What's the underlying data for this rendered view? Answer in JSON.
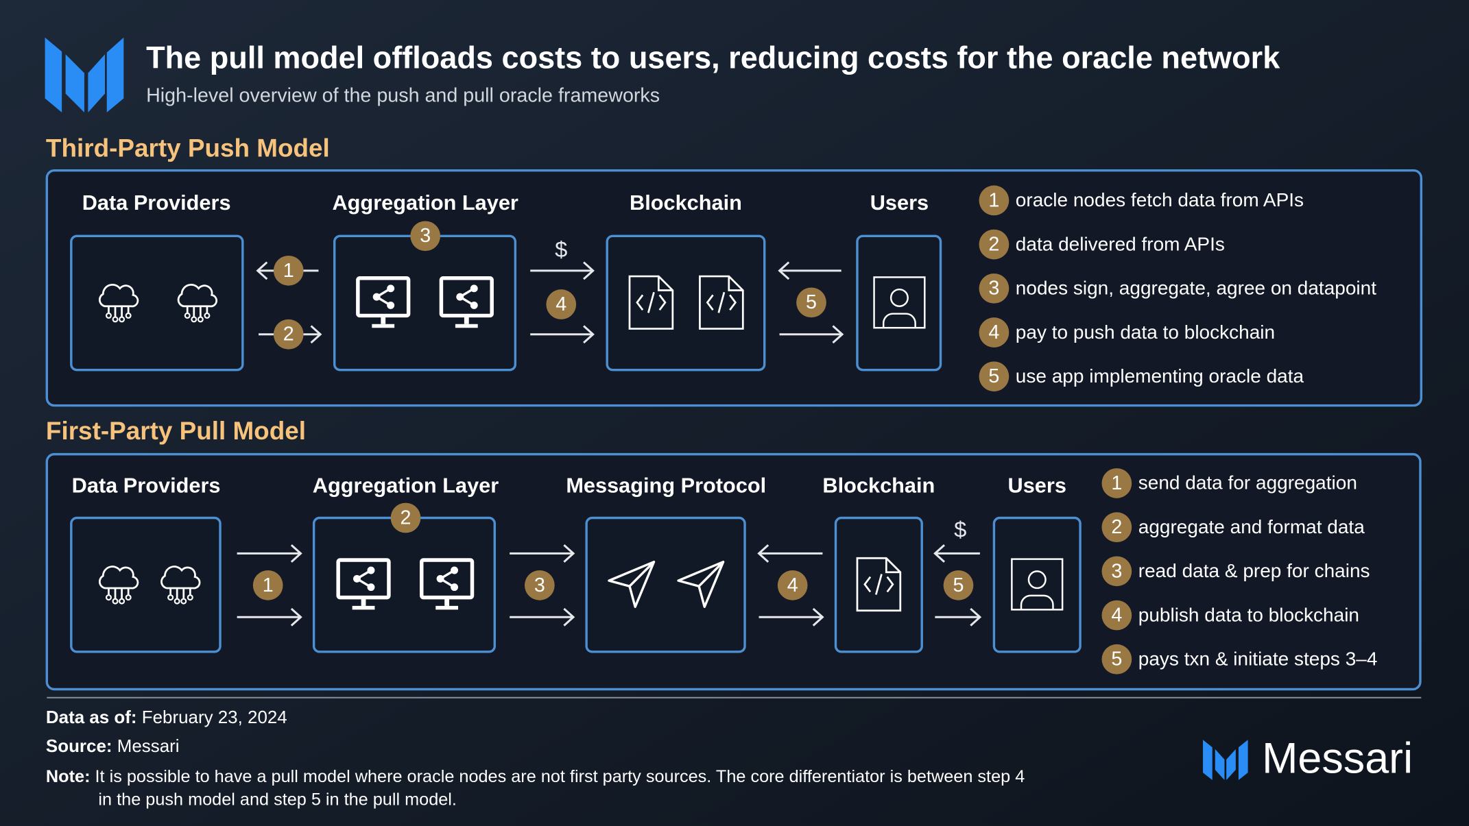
{
  "header": {
    "title": "The pull model offloads costs to users, reducing costs for the oracle network",
    "subtitle": "High-level overview of the push and pull oracle frameworks"
  },
  "push_model": {
    "title": "Third-Party Push Model",
    "columns": [
      "Data Providers",
      "Aggregation Layer",
      "Blockchain",
      "Users"
    ],
    "fee_symbol": "$",
    "steps": [
      {
        "number": "1",
        "text": "oracle nodes fetch data from APIs"
      },
      {
        "number": "2",
        "text": "data delivered from APIs"
      },
      {
        "number": "3",
        "text": "nodes sign, aggregate, agree on datapoint"
      },
      {
        "number": "4",
        "text": "pay to push data to blockchain"
      },
      {
        "number": "5",
        "text": "use app implementing oracle data"
      }
    ]
  },
  "pull_model": {
    "title": "First-Party Pull Model",
    "columns": [
      "Data Providers",
      "Aggregation Layer",
      "Messaging Protocol",
      "Blockchain",
      "Users"
    ],
    "fee_symbol": "$",
    "steps": [
      {
        "number": "1",
        "text": "send data for aggregation"
      },
      {
        "number": "2",
        "text": "aggregate and format data"
      },
      {
        "number": "3",
        "text": "read data & prep for chains"
      },
      {
        "number": "4",
        "text": "publish data to blockchain"
      },
      {
        "number": "5",
        "text": "pays txn & initiate steps 3–4"
      }
    ]
  },
  "footer": {
    "data_as_of": {
      "label": "Data as of:",
      "value": "February 23, 2024"
    },
    "source": {
      "label": "Source:",
      "value": "Messari"
    },
    "note": {
      "label": "Note:",
      "lines": [
        "It is possible to have a pull model where oracle nodes are not first party sources. The core differentiator is between step 4",
        "in the push model and step 5 in the pull model."
      ]
    },
    "brand": "Messari"
  }
}
